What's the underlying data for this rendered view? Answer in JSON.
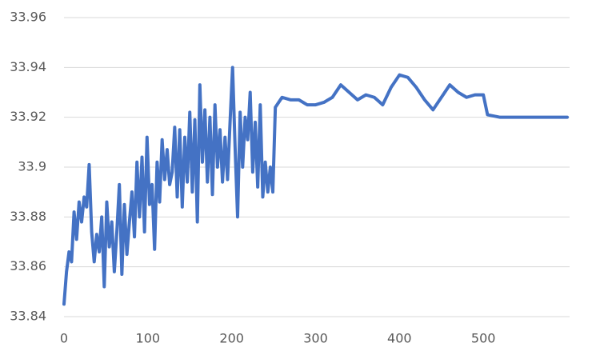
{
  "chart_data": {
    "type": "line",
    "x": [
      0,
      3,
      6,
      9,
      12,
      15,
      18,
      21,
      24,
      27,
      30,
      33,
      36,
      39,
      42,
      45,
      48,
      51,
      54,
      57,
      60,
      63,
      66,
      69,
      72,
      75,
      78,
      81,
      84,
      87,
      90,
      93,
      96,
      99,
      102,
      105,
      108,
      111,
      114,
      117,
      120,
      123,
      126,
      129,
      132,
      135,
      138,
      141,
      144,
      147,
      150,
      153,
      156,
      159,
      162,
      165,
      168,
      171,
      174,
      177,
      180,
      183,
      186,
      189,
      192,
      195,
      198,
      201,
      204,
      207,
      210,
      213,
      216,
      219,
      222,
      225,
      228,
      231,
      234,
      237,
      240,
      243,
      246,
      249,
      252,
      260,
      270,
      280,
      290,
      300,
      310,
      320,
      330,
      340,
      350,
      360,
      370,
      380,
      390,
      400,
      410,
      420,
      430,
      440,
      450,
      460,
      470,
      480,
      490,
      500,
      505,
      520,
      540,
      560,
      580,
      600
    ],
    "series": [
      {
        "color": "#4472c4",
        "values": [
          33.845,
          33.858,
          33.866,
          33.862,
          33.882,
          33.871,
          33.886,
          33.878,
          33.888,
          33.884,
          33.901,
          33.874,
          33.862,
          33.873,
          33.866,
          33.88,
          33.852,
          33.886,
          33.868,
          33.878,
          33.858,
          33.874,
          33.893,
          33.857,
          33.885,
          33.865,
          33.878,
          33.89,
          33.872,
          33.902,
          33.88,
          33.904,
          33.874,
          33.912,
          33.885,
          33.893,
          33.867,
          33.902,
          33.886,
          33.911,
          33.895,
          33.907,
          33.893,
          33.898,
          33.916,
          33.888,
          33.915,
          33.884,
          33.912,
          33.894,
          33.922,
          33.89,
          33.919,
          33.878,
          33.933,
          33.902,
          33.923,
          33.894,
          33.92,
          33.889,
          33.925,
          33.9,
          33.915,
          33.894,
          33.912,
          33.895,
          33.918,
          33.94,
          33.908,
          33.88,
          33.922,
          33.9,
          33.92,
          33.911,
          33.93,
          33.898,
          33.918,
          33.892,
          33.925,
          33.888,
          33.902,
          33.89,
          33.9,
          33.89,
          33.924,
          33.928,
          33.927,
          33.927,
          33.925,
          33.925,
          33.926,
          33.928,
          33.933,
          33.93,
          33.927,
          33.929,
          33.928,
          33.925,
          33.932,
          33.937,
          33.936,
          33.932,
          33.927,
          33.923,
          33.928,
          33.933,
          33.93,
          33.928,
          33.929,
          33.929,
          33.921,
          33.92,
          33.92,
          33.92,
          33.92,
          33.92
        ]
      }
    ],
    "xlim": [
      0,
      600
    ],
    "xticks": [
      0,
      100,
      200,
      300,
      400,
      500
    ],
    "ylim": [
      33.84,
      33.96
    ],
    "yticks": [
      33.84,
      33.86,
      33.88,
      33.9,
      33.92,
      33.94,
      33.96
    ],
    "grid": true
  }
}
